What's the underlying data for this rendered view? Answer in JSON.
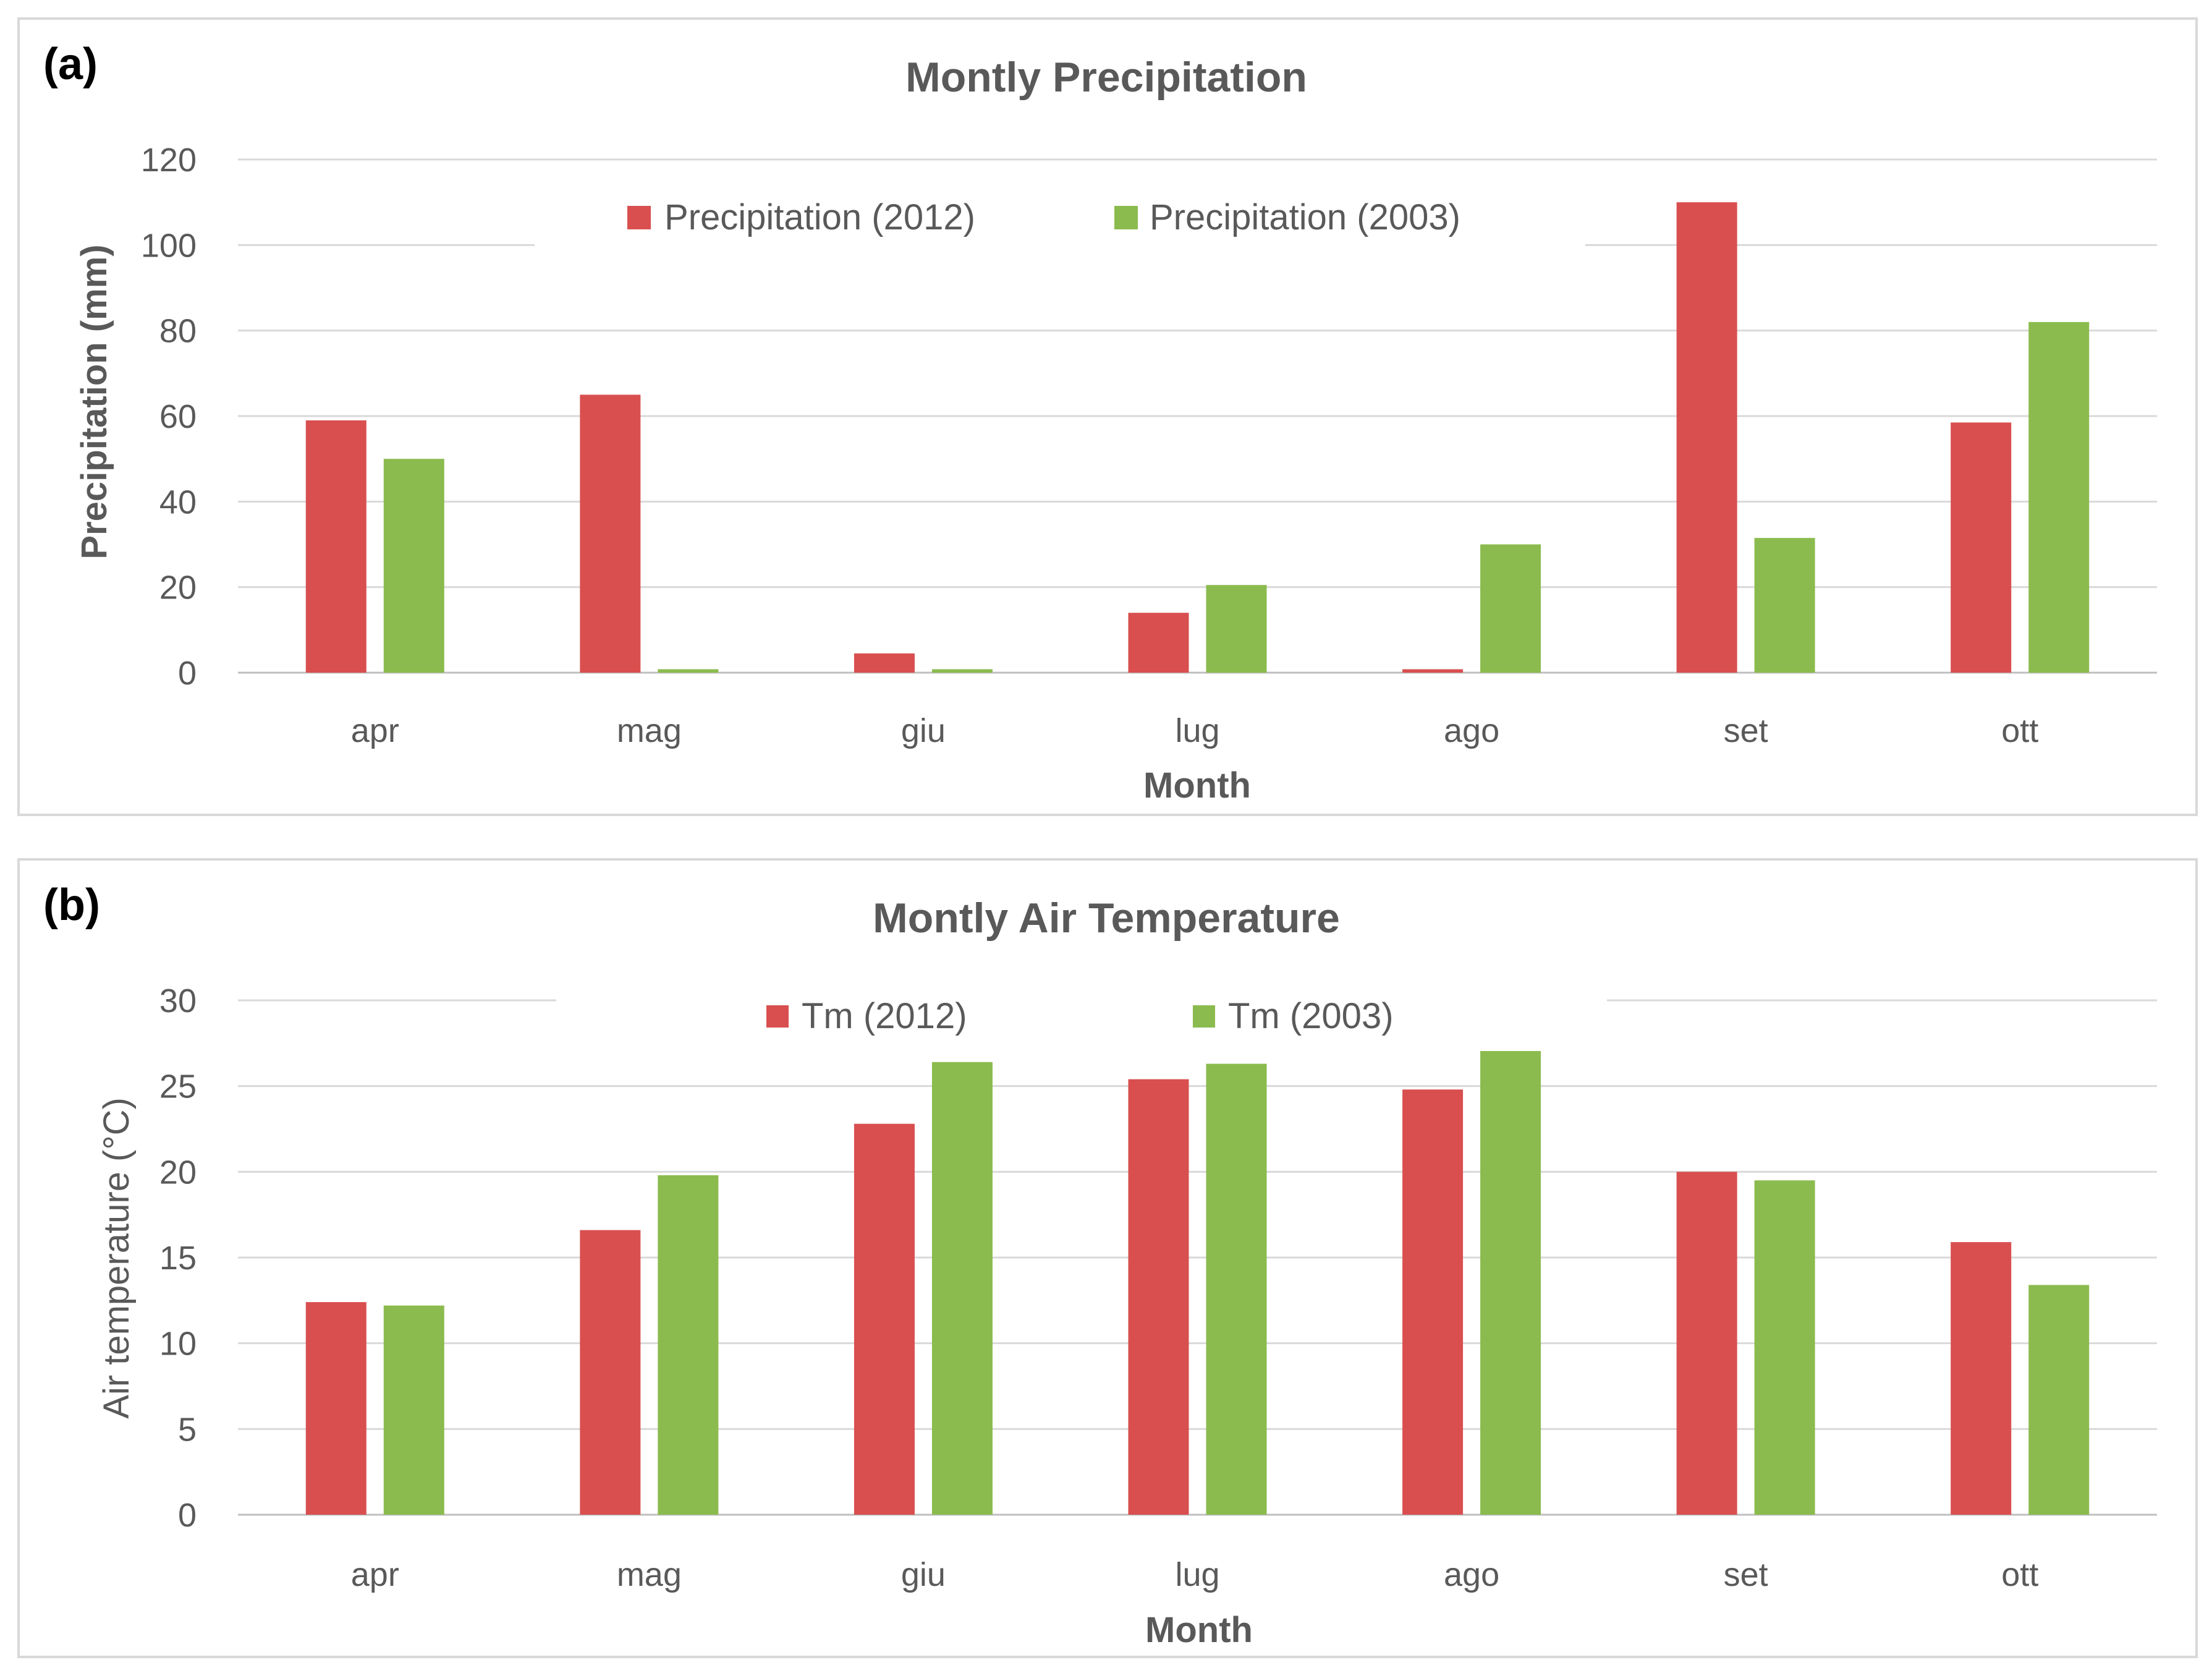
{
  "chart_data": [
    {
      "panel_label": "(a)",
      "type": "bar",
      "title": "Montly Precipitation",
      "xlabel": "Month",
      "ylabel": "Precipitation (mm)",
      "ylim": [
        0,
        120
      ],
      "yticks": [
        "0",
        "20",
        "40",
        "60",
        "80",
        "100",
        "120"
      ],
      "ytick_values": [
        0,
        20,
        40,
        60,
        80,
        100,
        120
      ],
      "categories": [
        "apr",
        "mag",
        "giu",
        "lug",
        "ago",
        "set",
        "ott"
      ],
      "legend_position": "top-center",
      "series": [
        {
          "name": "Precipitation (2012)",
          "color": "#d94f4f",
          "values": [
            59,
            65,
            4.5,
            14,
            0.8,
            110,
            58.5
          ]
        },
        {
          "name": "Precipitation (2003)",
          "color": "#8bbb4e",
          "values": [
            50,
            0.8,
            0.8,
            20.5,
            30,
            31.5,
            82
          ]
        }
      ]
    },
    {
      "panel_label": "(b)",
      "type": "bar",
      "title": "Montly Air Temperature",
      "xlabel": "Month",
      "ylabel": "Air temperature (°C)",
      "ylim": [
        0,
        30
      ],
      "yticks": [
        "0",
        "5",
        "10",
        "15",
        "20",
        "25",
        "30"
      ],
      "ytick_values": [
        0,
        5,
        10,
        15,
        20,
        25,
        30
      ],
      "categories": [
        "apr",
        "mag",
        "giu",
        "lug",
        "ago",
        "set",
        "ott"
      ],
      "legend_position": "top-center",
      "series": [
        {
          "name": "Tm (2012)",
          "color": "#d94f4f",
          "values": [
            12.4,
            16.6,
            22.8,
            25.4,
            24.8,
            20.0,
            15.9
          ]
        },
        {
          "name": "Tm (2003)",
          "color": "#8bbb4e",
          "values": [
            12.2,
            19.8,
            26.4,
            26.3,
            27.3,
            19.5,
            13.4
          ]
        }
      ]
    }
  ]
}
